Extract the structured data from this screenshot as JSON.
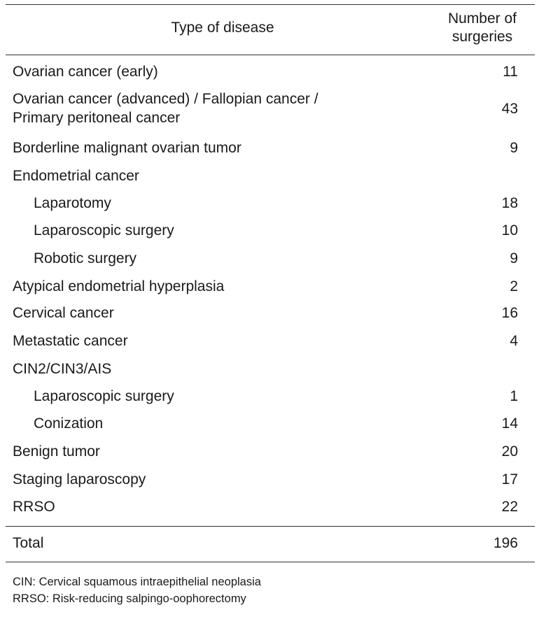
{
  "header": {
    "type_label": "Type of disease",
    "number_label_line1": "Number of",
    "number_label_line2": "surgeries"
  },
  "rows": [
    {
      "label": "Ovarian cancer (early)",
      "value": "11",
      "indent": false
    },
    {
      "label": "Ovarian cancer (advanced) / Fallopian cancer /",
      "label2": "Primary peritoneal cancer",
      "value": "43",
      "indent": false
    },
    {
      "label": "Borderline malignant ovarian tumor",
      "value": "9",
      "indent": false
    },
    {
      "label": "Endometrial cancer",
      "value": "",
      "indent": false
    },
    {
      "label": "Laparotomy",
      "value": "18",
      "indent": true
    },
    {
      "label": "Laparoscopic surgery",
      "value": "10",
      "indent": true
    },
    {
      "label": "Robotic surgery",
      "value": "9",
      "indent": true
    },
    {
      "label": "Atypical endometrial hyperplasia",
      "value": "2",
      "indent": false
    },
    {
      "label": "Cervical cancer",
      "value": "16",
      "indent": false
    },
    {
      "label": "Metastatic cancer",
      "value": "4",
      "indent": false
    },
    {
      "label": "CIN2/CIN3/AIS",
      "value": "",
      "indent": false
    },
    {
      "label": "Laparoscopic surgery",
      "value": "1",
      "indent": true
    },
    {
      "label": "Conization",
      "value": "14",
      "indent": true
    },
    {
      "label": "Benign tumor",
      "value": "20",
      "indent": false
    },
    {
      "label": "Staging laparoscopy",
      "value": "17",
      "indent": false
    },
    {
      "label": "RRSO",
      "value": "22",
      "indent": false
    }
  ],
  "total": {
    "label": "Total",
    "value": "196"
  },
  "notes": [
    "CIN: Cervical squamous intraepithelial neoplasia",
    "RRSO: Risk-reducing salpingo-oophorectomy"
  ]
}
